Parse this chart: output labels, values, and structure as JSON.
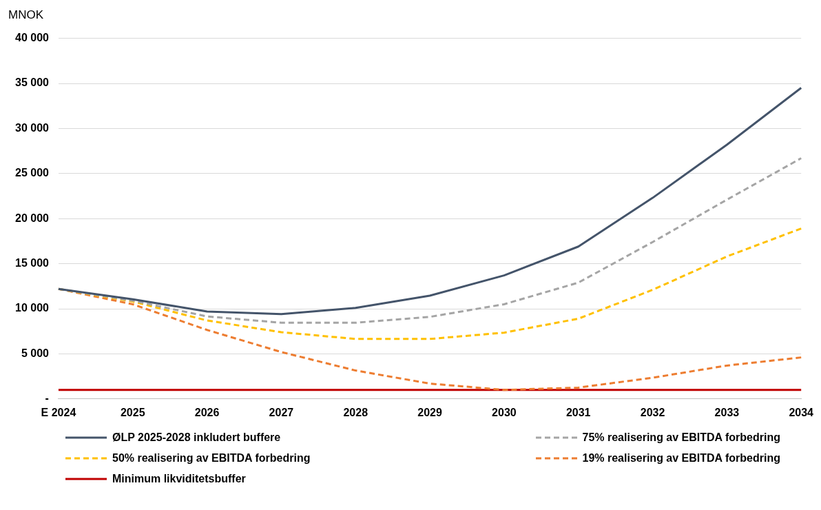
{
  "chart_data": {
    "type": "line",
    "ylabel": "MNOK",
    "categories": [
      "E 2024",
      "2025",
      "2026",
      "2027",
      "2028",
      "2029",
      "2030",
      "2031",
      "2032",
      "2033",
      "2034"
    ],
    "ylim": [
      0,
      40000
    ],
    "yticks": [
      {
        "value": 0,
        "label": "-"
      },
      {
        "value": 5000,
        "label": "5 000"
      },
      {
        "value": 10000,
        "label": "10 000"
      },
      {
        "value": 15000,
        "label": "15 000"
      },
      {
        "value": 20000,
        "label": "20 000"
      },
      {
        "value": 25000,
        "label": "25 000"
      },
      {
        "value": 30000,
        "label": "30 000"
      },
      {
        "value": 35000,
        "label": "35 000"
      },
      {
        "value": 40000,
        "label": "40 000"
      }
    ],
    "grid": "y",
    "legend": "bottom",
    "marker": "none",
    "series": [
      {
        "name": "ØLP 2025-2028 inkludert buffere",
        "color": "#44546a",
        "line_style": "solid",
        "values": [
          12200,
          11050,
          9700,
          9400,
          10100,
          11450,
          13700,
          16900,
          22300,
          28200,
          34500
        ]
      },
      {
        "name": "75% realisering av EBITDA forbedring",
        "color": "#a5a5a5",
        "line_style": "dashed",
        "values": [
          12200,
          10900,
          9150,
          8450,
          8450,
          9100,
          10500,
          12900,
          17400,
          22100,
          26700
        ]
      },
      {
        "name": "50% realisering av EBITDA forbedring",
        "color": "#ffc000",
        "line_style": "dashed",
        "values": [
          12200,
          10800,
          8700,
          7400,
          6650,
          6650,
          7350,
          8900,
          12100,
          15800,
          18900
        ]
      },
      {
        "name": "19% realisering av EBITDA forbedring",
        "color": "#ed7d31",
        "line_style": "dashed",
        "values": [
          12200,
          10500,
          7650,
          5200,
          3150,
          1700,
          1000,
          1250,
          2350,
          3700,
          4600
        ]
      },
      {
        "name": "Minimum likviditetsbuffer",
        "color": "#c00000",
        "line_style": "solid",
        "values": [
          1000,
          1000,
          1000,
          1000,
          1000,
          1000,
          1000,
          1000,
          1000,
          1000,
          1000
        ]
      }
    ]
  }
}
